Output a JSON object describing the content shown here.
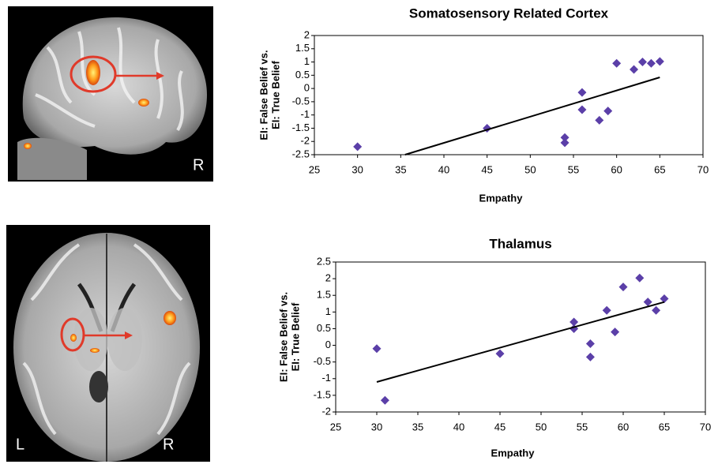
{
  "images": [
    {
      "labels": [
        "R"
      ]
    },
    {
      "labels": [
        "L",
        "R"
      ]
    }
  ],
  "chart_data": [
    {
      "type": "scatter",
      "title": "Somatosensory Related Cortex",
      "y_label": [
        "EI: False Belief vs.",
        "EI: True Belief"
      ],
      "x_label": "Empathy",
      "x": [
        30,
        45,
        54,
        54,
        56,
        56,
        58,
        59,
        60,
        62,
        63,
        64,
        65
      ],
      "values": [
        -2.2,
        -1.5,
        -1.85,
        -2.05,
        -0.15,
        -0.8,
        -1.2,
        -0.85,
        0.95,
        0.72,
        1.0,
        0.95,
        1.02
      ],
      "color": "#5b3fa8",
      "trendline": {
        "x": [
          35.5,
          65
        ],
        "y": [
          -2.5,
          0.42
        ],
        "color": "#000000"
      },
      "xlim": [
        25,
        70
      ],
      "xticks": [
        25,
        30,
        35,
        40,
        45,
        50,
        55,
        60,
        65,
        70
      ],
      "ylim": [
        -2.5,
        2
      ],
      "yticks": [
        -2.5,
        -2,
        -1.5,
        -1,
        -0.5,
        0,
        0.5,
        1,
        1.5,
        2
      ],
      "grid": false
    },
    {
      "type": "scatter",
      "title": "Thalamus",
      "y_label": [
        "EI: False Belief vs.",
        "EI: True Belief"
      ],
      "x_label": "Empathy",
      "x": [
        30,
        31,
        45,
        54,
        54,
        56,
        56,
        58,
        59,
        60,
        62,
        63,
        64,
        65
      ],
      "values": [
        -0.1,
        -1.65,
        -0.25,
        0.7,
        0.5,
        0.05,
        -0.35,
        1.05,
        0.4,
        1.75,
        2.02,
        1.3,
        1.05,
        1.4
      ],
      "color": "#5b3fa8",
      "trendline": {
        "x": [
          30,
          65
        ],
        "y": [
          -1.1,
          1.3
        ],
        "color": "#000000"
      },
      "xlim": [
        25,
        70
      ],
      "xticks": [
        25,
        30,
        35,
        40,
        45,
        50,
        55,
        60,
        65,
        70
      ],
      "ylim": [
        -2,
        2.5
      ],
      "yticks": [
        -2,
        -1.5,
        -1,
        -0.5,
        0,
        0.5,
        1,
        1.5,
        2,
        2.5
      ],
      "grid": false
    }
  ]
}
